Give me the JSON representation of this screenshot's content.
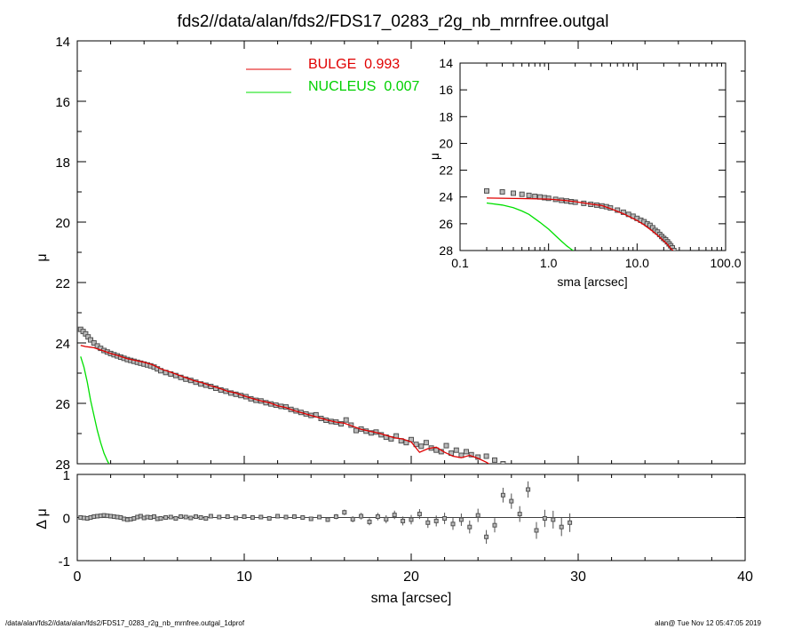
{
  "title": "fds2//data/alan/fds2/FDS17_0283_r2g_nb_mrnfree.outgal",
  "footer": {
    "left": "/data/alan/fds2//data/alan/fds2/FDS17_0283_r2g_nb_mrnfree.outgal_1dprof",
    "right": "alan@  Tue Nov 12 05:47:05 2019"
  },
  "legend": {
    "bulge_label": "BULGE",
    "bulge_value": "0.993",
    "nucleus_label": "NUCLEUS",
    "nucleus_value": "0.007"
  },
  "colors": {
    "bulge": "#e00000",
    "nucleus": "#00e000",
    "data": "#505050",
    "axes": "#000000"
  },
  "chart_data": [
    {
      "type": "scatter",
      "panel": "main",
      "xlabel": "",
      "ylabel": "μ",
      "xlim": [
        0,
        40
      ],
      "ylim": [
        28,
        14
      ],
      "y_reversed": true,
      "x_ticks": [
        0,
        10,
        20,
        30,
        40
      ],
      "y_ticks": [
        "14",
        "16",
        "18",
        "20",
        "22",
        "24",
        "26",
        "28"
      ],
      "series": [
        {
          "name": "data",
          "marker": "square",
          "x": [
            0.2,
            0.35,
            0.5,
            0.65,
            0.8,
            1.0,
            1.2,
            1.4,
            1.6,
            1.8,
            2.0,
            2.2,
            2.4,
            2.6,
            2.8,
            3.0,
            3.2,
            3.4,
            3.6,
            3.8,
            4.0,
            4.2,
            4.4,
            4.6,
            4.8,
            5.0,
            5.3,
            5.6,
            5.9,
            6.2,
            6.5,
            6.8,
            7.1,
            7.4,
            7.7,
            8.0,
            8.3,
            8.6,
            8.9,
            9.2,
            9.5,
            9.8,
            10.1,
            10.4,
            10.7,
            11.0,
            11.3,
            11.6,
            11.9,
            12.2,
            12.5,
            12.8,
            13.1,
            13.4,
            13.7,
            14.0,
            14.3,
            14.6,
            14.9,
            15.2,
            15.5,
            15.8,
            16.1,
            16.4,
            16.7,
            17.0,
            17.3,
            17.6,
            17.9,
            18.2,
            18.5,
            18.8,
            19.1,
            19.4,
            19.7,
            20.0,
            20.3,
            20.6,
            20.9,
            21.2,
            21.5,
            21.8,
            22.1,
            22.4,
            22.7,
            23.0,
            23.3,
            23.6,
            24.0,
            24.5,
            25.0,
            25.5
          ],
          "y": [
            23.55,
            23.62,
            23.7,
            23.8,
            23.9,
            24.0,
            24.1,
            24.18,
            24.25,
            24.3,
            24.35,
            24.39,
            24.43,
            24.47,
            24.51,
            24.55,
            24.58,
            24.61,
            24.64,
            24.67,
            24.7,
            24.73,
            24.76,
            24.8,
            24.86,
            24.92,
            24.98,
            25.03,
            25.08,
            25.14,
            25.2,
            25.24,
            25.3,
            25.36,
            25.4,
            25.44,
            25.5,
            25.56,
            25.6,
            25.66,
            25.7,
            25.74,
            25.78,
            25.85,
            25.9,
            25.92,
            25.98,
            26.02,
            26.06,
            26.1,
            26.12,
            26.2,
            26.25,
            26.3,
            26.35,
            26.4,
            26.38,
            26.5,
            26.56,
            26.6,
            26.62,
            26.68,
            26.55,
            26.72,
            26.9,
            26.85,
            26.92,
            26.98,
            26.95,
            27.04,
            27.12,
            27.18,
            27.08,
            27.24,
            27.3,
            27.2,
            27.36,
            27.42,
            27.3,
            27.48,
            27.55,
            27.6,
            27.4,
            27.65,
            27.55,
            27.72,
            27.6,
            27.7,
            27.78,
            27.75,
            27.88,
            28.0
          ]
        },
        {
          "name": "BULGE",
          "x": [
            0.2,
            0.5,
            0.8,
            1.0,
            1.2,
            1.5,
            2.0,
            2.5,
            3.0,
            3.5,
            4.0,
            4.5,
            5.0,
            5.5,
            6.0,
            6.5,
            7.0,
            7.5,
            8.0,
            8.5,
            9.0,
            9.5,
            10.0,
            10.5,
            11.0,
            11.5,
            12.0,
            12.5,
            13.0,
            13.5,
            14.0,
            14.5,
            15.0,
            15.5,
            16.0,
            16.5,
            17.0,
            17.5,
            18.0,
            18.5,
            19.0,
            19.5,
            20.0,
            20.5,
            21.0,
            21.5,
            22.0,
            22.5,
            23.0,
            23.5,
            24.0,
            24.5,
            24.8
          ],
          "y": [
            24.08,
            24.12,
            24.14,
            24.16,
            24.2,
            24.25,
            24.35,
            24.43,
            24.52,
            24.58,
            24.64,
            24.72,
            24.86,
            24.95,
            25.05,
            25.15,
            25.25,
            25.32,
            25.42,
            25.5,
            25.6,
            25.66,
            25.76,
            25.84,
            25.92,
            25.98,
            26.08,
            26.14,
            26.24,
            26.32,
            26.4,
            26.48,
            26.56,
            26.62,
            26.66,
            26.76,
            26.86,
            26.92,
            26.98,
            27.06,
            27.14,
            27.18,
            27.28,
            27.62,
            27.5,
            27.45,
            27.62,
            27.75,
            27.8,
            27.72,
            27.82,
            27.95,
            28.05
          ]
        },
        {
          "name": "NUCLEUS",
          "x": [
            0.2,
            0.4,
            0.6,
            0.8,
            1.0,
            1.2,
            1.4,
            1.6,
            1.8,
            1.9
          ],
          "y": [
            24.45,
            24.8,
            25.3,
            25.9,
            26.4,
            26.9,
            27.3,
            27.65,
            27.9,
            28.0
          ]
        }
      ]
    },
    {
      "type": "scatter",
      "panel": "inset",
      "xlabel": "sma [arcsec]",
      "ylabel": "μ",
      "x_scale": "log",
      "xlim": [
        0.1,
        100
      ],
      "ylim": [
        28,
        14
      ],
      "y_reversed": true,
      "x_ticks": [
        "0.1",
        "1.0",
        "10.0",
        "100.0"
      ],
      "y_ticks": [
        "14",
        "16",
        "18",
        "20",
        "22",
        "24",
        "26",
        "28"
      ],
      "series": [
        {
          "name": "data",
          "x": [
            0.2,
            0.3,
            0.4,
            0.5,
            0.6,
            0.7,
            0.8,
            0.9,
            1.0,
            1.2,
            1.4,
            1.6,
            1.8,
            2.0,
            2.5,
            3.0,
            3.5,
            4.0,
            4.5,
            5.0,
            6.0,
            7.0,
            8.0,
            9.0,
            10.0,
            11.0,
            12.0,
            13.0,
            14.0,
            15.0,
            16.0,
            17.0,
            18.0,
            19.0,
            20.0,
            21.0,
            22.0,
            23.0,
            24.0,
            25.0,
            26.0
          ],
          "y": [
            23.55,
            23.62,
            23.72,
            23.8,
            23.88,
            23.95,
            24.0,
            24.05,
            24.1,
            24.18,
            24.25,
            24.3,
            24.35,
            24.39,
            24.48,
            24.55,
            24.61,
            24.67,
            24.73,
            24.82,
            24.98,
            25.14,
            25.3,
            25.44,
            25.6,
            25.74,
            25.85,
            26.0,
            26.12,
            26.3,
            26.5,
            26.62,
            26.8,
            26.95,
            27.1,
            27.2,
            27.35,
            27.5,
            27.65,
            27.8,
            28.0
          ]
        },
        {
          "name": "BULGE",
          "x": [
            0.2,
            0.5,
            1.0,
            1.5,
            2.0,
            3.0,
            4.0,
            5.0,
            7.0,
            10.0,
            12.0,
            15.0,
            18.0,
            20.0,
            22.0,
            24.0,
            25.5
          ],
          "y": [
            24.08,
            24.12,
            24.16,
            24.25,
            24.35,
            24.52,
            24.64,
            24.86,
            25.25,
            25.76,
            26.08,
            26.56,
            27.0,
            27.28,
            27.55,
            27.85,
            28.0
          ]
        },
        {
          "name": "NUCLEUS",
          "x": [
            0.2,
            0.3,
            0.4,
            0.5,
            0.6,
            0.8,
            1.0,
            1.2,
            1.4,
            1.6,
            1.8,
            1.9
          ],
          "y": [
            24.45,
            24.6,
            24.8,
            25.05,
            25.3,
            25.9,
            26.4,
            26.9,
            27.3,
            27.65,
            27.9,
            28.0
          ]
        }
      ]
    },
    {
      "type": "scatter",
      "panel": "residual",
      "xlabel": "sma [arcsec]",
      "ylabel": "Δ μ",
      "xlim": [
        0,
        40
      ],
      "ylim": [
        -1,
        1
      ],
      "x_ticks": [
        "0",
        "10",
        "20",
        "30",
        "40"
      ],
      "y_ticks": [
        "-1",
        "0",
        "1"
      ],
      "series": [
        {
          "name": "residual",
          "x": [
            0.2,
            0.4,
            0.6,
            0.8,
            1.0,
            1.2,
            1.4,
            1.6,
            1.8,
            2.0,
            2.2,
            2.4,
            2.6,
            2.8,
            3.0,
            3.2,
            3.4,
            3.6,
            3.8,
            4.0,
            4.2,
            4.4,
            4.6,
            4.8,
            5.0,
            5.3,
            5.6,
            5.9,
            6.2,
            6.5,
            6.8,
            7.1,
            7.4,
            7.7,
            8.0,
            8.5,
            9.0,
            9.5,
            10.0,
            10.5,
            11.0,
            11.5,
            12.0,
            12.5,
            13.0,
            13.5,
            14.0,
            14.5,
            15.0,
            15.5,
            16.0,
            16.5,
            17.0,
            17.5,
            18.0,
            18.5,
            19.0,
            19.5,
            20.0,
            20.5,
            21.0,
            21.5,
            22.0,
            22.5,
            23.0,
            23.5,
            24.0,
            24.5,
            25.0,
            25.5,
            26.0,
            26.5,
            27.0,
            27.5,
            28.0,
            28.5,
            29.0,
            29.5
          ],
          "y": [
            0.0,
            -0.01,
            -0.02,
            0.0,
            0.02,
            0.03,
            0.04,
            0.05,
            0.04,
            0.03,
            0.02,
            0.01,
            0.0,
            -0.03,
            -0.05,
            -0.04,
            -0.02,
            0.01,
            0.03,
            -0.01,
            0.01,
            0.0,
            0.02,
            -0.03,
            -0.02,
            0.0,
            0.01,
            -0.02,
            0.02,
            0.01,
            -0.01,
            0.02,
            0.0,
            -0.02,
            0.03,
            0.01,
            0.02,
            -0.01,
            0.02,
            0.0,
            0.01,
            -0.02,
            0.03,
            0.01,
            0.02,
            0.0,
            -0.03,
            0.01,
            -0.05,
            0.02,
            0.12,
            -0.04,
            0.03,
            -0.1,
            0.02,
            -0.04,
            0.06,
            -0.08,
            -0.05,
            0.08,
            -0.12,
            -0.08,
            -0.02,
            -0.15,
            -0.05,
            -0.22,
            0.05,
            -0.45,
            -0.18,
            0.52,
            0.38,
            0.08,
            0.65,
            -0.3,
            -0.02,
            -0.05,
            -0.22,
            -0.12
          ]
        }
      ]
    }
  ]
}
